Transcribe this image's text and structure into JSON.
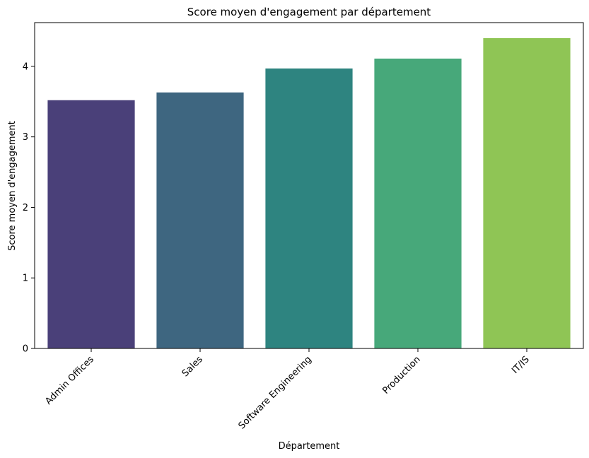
{
  "chart_data": {
    "type": "bar",
    "title": "Score moyen d'engagement par département",
    "xlabel": "Département",
    "ylabel": "Score moyen d'engagement",
    "categories": [
      "Admin Offices",
      "Sales",
      "Software Engineering",
      "Production",
      "IT/IS"
    ],
    "values": [
      3.52,
      3.63,
      3.97,
      4.11,
      4.4
    ],
    "colors": [
      "#4a4079",
      "#3e6680",
      "#2e8480",
      "#47a87a",
      "#8fc555"
    ],
    "ylim": [
      0,
      4.62
    ],
    "yticks": [
      0,
      1,
      2,
      3,
      4
    ],
    "ytick_labels": [
      "0",
      "1",
      "2",
      "3",
      "4"
    ],
    "grid": false,
    "legend": false
  }
}
